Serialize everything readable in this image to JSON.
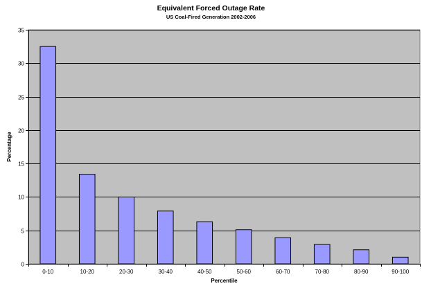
{
  "chart_data": {
    "type": "bar",
    "title": "Equivalent Forced Outage Rate",
    "subtitle": "US Coal-Fired Generation 2002-2006",
    "xlabel": "Percentile",
    "ylabel": "Percentage",
    "categories": [
      "0-10",
      "10-20",
      "20-30",
      "30-40",
      "40-50",
      "50-60",
      "60-70",
      "70-80",
      "80-90",
      "90-100"
    ],
    "values": [
      32.5,
      13.4,
      10.0,
      7.9,
      6.3,
      5.1,
      3.9,
      2.9,
      2.1,
      1.0
    ],
    "ylim": [
      0,
      35
    ],
    "yticks": [
      0,
      5,
      10,
      15,
      20,
      25,
      30,
      35
    ],
    "grid": true,
    "legend": "none",
    "colors": {
      "plot_background": "#c0c0c0",
      "bar_fill": "#9999ff",
      "bar_stroke": "#000000",
      "gridline": "#000000"
    }
  }
}
